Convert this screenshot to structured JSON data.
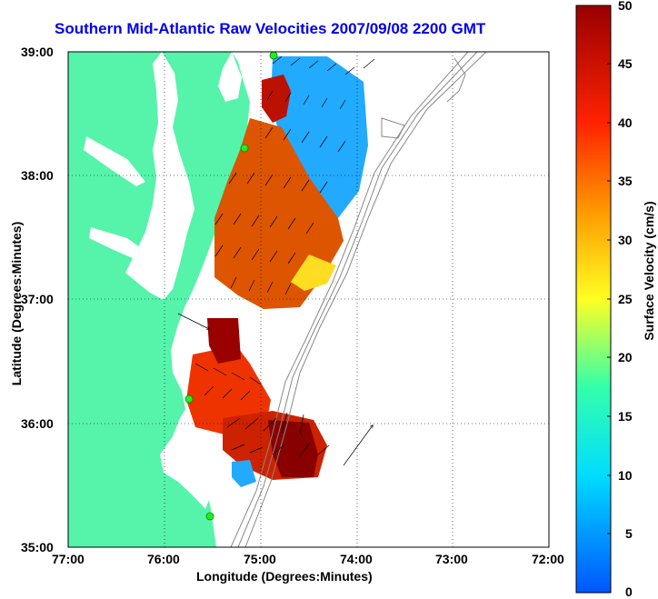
{
  "title": "Southern Mid-Atlantic Raw Velocities 2007/09/08 2200 GMT",
  "x_axis_label": "Longitude (Degrees:Minutes)",
  "y_axis_label": "Latitude (Degrees:Minutes)",
  "colorbar_label": "Surface Velocity (cm/s)",
  "x_ticks": [
    "77:00",
    "76:00",
    "75:00",
    "74:00",
    "73:00",
    "72:00"
  ],
  "y_ticks": [
    "39:00",
    "38:00",
    "37:00",
    "36:00",
    "35:00"
  ],
  "colorbar_ticks": [
    "50",
    "45",
    "40",
    "35",
    "30",
    "25",
    "20",
    "15",
    "10",
    "5",
    "0"
  ],
  "chart_data": {
    "type": "heatmap",
    "title": "Southern Mid-Atlantic Raw Velocities 2007/09/08 2200 GMT",
    "xlabel": "Longitude (Degrees:Minutes)",
    "ylabel": "Latitude (Degrees:Minutes)",
    "xlim": [
      -77.0,
      -72.0
    ],
    "ylim": [
      35.0,
      39.0
    ],
    "colorbar": {
      "label": "Surface Velocity (cm/s)",
      "range": [
        0,
        50
      ]
    },
    "grid": true,
    "colors": {
      "land": "#55f4aa",
      "title": "#0000ee",
      "site": "#22ee22"
    },
    "site_markers": [
      {
        "lon": -74.88,
        "lat": 39.0
      },
      {
        "lon": -75.09,
        "lat": 38.22
      },
      {
        "lon": -75.48,
        "lat": 36.18
      },
      {
        "lon": -75.54,
        "lat": 35.24
      }
    ]
  }
}
